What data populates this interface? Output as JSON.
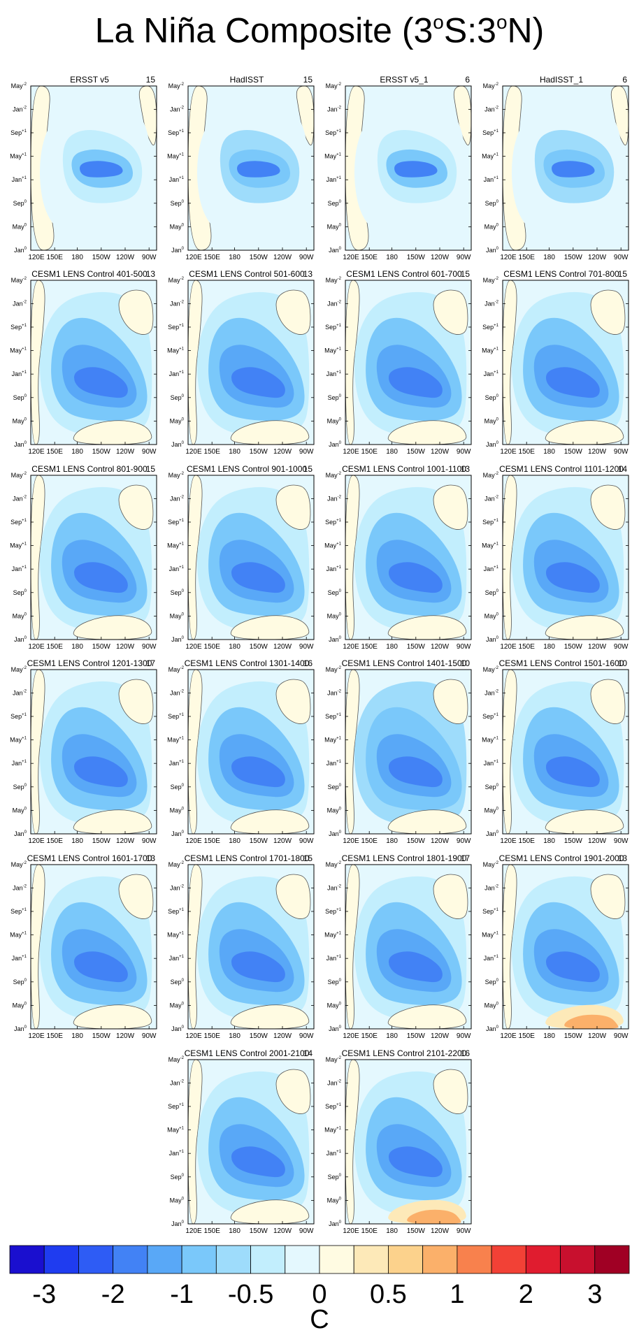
{
  "title": {
    "main": "La Niña Composite (3",
    "sup1": "o",
    "mid": "S:3",
    "sup2": "o",
    "end": "N)"
  },
  "chart_data": {
    "type": "heatmap",
    "title": "La Niña Composite (3oS:3oN)",
    "xlabel": "",
    "ylabel": "",
    "x_ticks": [
      "120E",
      "150E",
      "180",
      "150W",
      "120W",
      "90W"
    ],
    "y_ticks": [
      "Jan0",
      "May0",
      "Sep0",
      "Jan+1",
      "May+1",
      "Sep+1",
      "Jan+2",
      "May+2"
    ],
    "x_range": [
      "120E",
      "80W"
    ],
    "y_range": [
      "Jan0",
      "May+2"
    ],
    "contour_line_level": 0,
    "colorbar": {
      "label": "C",
      "tick_labels": [
        "-3",
        "-2",
        "-1",
        "-0.5",
        "0",
        "0.5",
        "1",
        "2",
        "3"
      ],
      "colors": [
        "#1a0fcf",
        "#1f3cf0",
        "#2e5cf5",
        "#4282f5",
        "#59a8f7",
        "#7ac8fa",
        "#9edcfb",
        "#c2eefd",
        "#e4f8fe",
        "#fffbe2",
        "#fde9b8",
        "#fcd28c",
        "#fbb06a",
        "#f8814d",
        "#f24136",
        "#e01c2f",
        "#c8102e",
        "#a00024"
      ]
    },
    "panels": [
      {
        "name": "ERSST v5",
        "count": "15",
        "style": 0
      },
      {
        "name": "HadISST",
        "count": "15",
        "style": 1
      },
      {
        "name": "ERSST v5_1",
        "count": "6",
        "style": 0
      },
      {
        "name": "HadISST_1",
        "count": "6",
        "style": 1
      },
      {
        "name": "CESM1 LENS Control 401-500",
        "count": "13",
        "style": 2
      },
      {
        "name": "CESM1 LENS Control 501-600",
        "count": "13",
        "style": 2
      },
      {
        "name": "CESM1 LENS Control 601-700",
        "count": "15",
        "style": 2
      },
      {
        "name": "CESM1 LENS Control 701-800",
        "count": "15",
        "style": 2
      },
      {
        "name": "CESM1 LENS Control 801-900",
        "count": "15",
        "style": 2
      },
      {
        "name": "CESM1 LENS Control 901-1000",
        "count": "15",
        "style": 2
      },
      {
        "name": "CESM1 LENS Control 1001-1100",
        "count": "13",
        "style": 2
      },
      {
        "name": "CESM1 LENS Control 1101-1200",
        "count": "14",
        "style": 2
      },
      {
        "name": "CESM1 LENS Control 1201-1300",
        "count": "17",
        "style": 2
      },
      {
        "name": "CESM1 LENS Control 1301-1400",
        "count": "16",
        "style": 2
      },
      {
        "name": "CESM1 LENS Control 1401-1500",
        "count": "10",
        "style": 3
      },
      {
        "name": "CESM1 LENS Control 1501-1600",
        "count": "10",
        "style": 2
      },
      {
        "name": "CESM1 LENS Control 1601-1700",
        "count": "13",
        "style": 2
      },
      {
        "name": "CESM1 LENS Control 1701-1800",
        "count": "15",
        "style": 2
      },
      {
        "name": "CESM1 LENS Control 1801-1900",
        "count": "17",
        "style": 2
      },
      {
        "name": "CESM1 LENS Control 1901-2000",
        "count": "13",
        "style": 4
      },
      {
        "name": "CESM1 LENS Control 2001-2100",
        "count": "14",
        "style": 2
      },
      {
        "name": "CESM1 LENS Control 2101-2200",
        "count": "16",
        "style": 4
      }
    ]
  },
  "colorbar_unit": "C"
}
